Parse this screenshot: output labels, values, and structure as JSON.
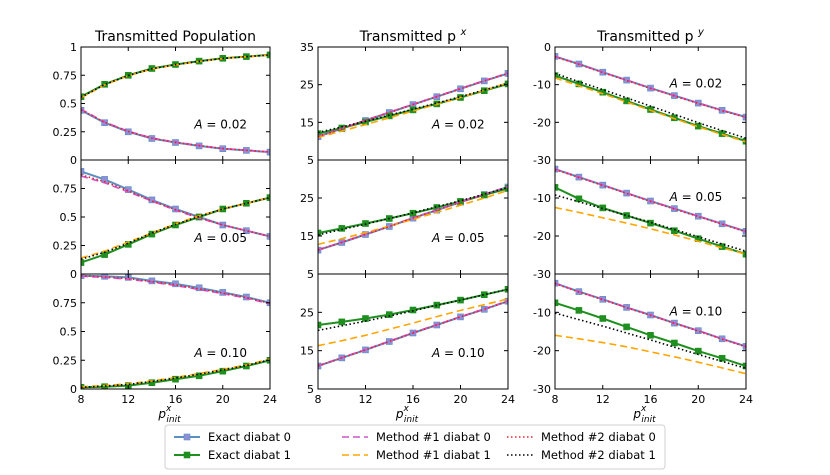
{
  "colors": {
    "exact0": "#5a8fc0",
    "exact1": "#1f8f1f",
    "m1d0": "#cc55cc",
    "m1d1": "#ffa500",
    "m2d0": "#e8202a",
    "m2d1": "#000000",
    "marker0": "#8f8fd8"
  },
  "chart_data": {
    "type": "line",
    "x": [
      8,
      10,
      12,
      14,
      16,
      18,
      20,
      22,
      24
    ],
    "xlabel": "p_init^x",
    "xticks": [
      "8",
      "12",
      "16",
      "20",
      "24"
    ],
    "columns": [
      {
        "title": "Transmitted Population",
        "title_sup": "",
        "ylim": [
          0,
          1
        ],
        "yticks": [
          0,
          0.25,
          0.5,
          0.75,
          1
        ],
        "ytick_labels": [
          "0",
          "0.25",
          "0.5",
          "0.75",
          "1"
        ]
      },
      {
        "title": "Transmitted p",
        "title_sup": "x",
        "ylim": [
          5,
          35
        ],
        "yticks": [
          5,
          15,
          25,
          35
        ],
        "ytick_labels": [
          "5",
          "15",
          "25",
          "35"
        ]
      },
      {
        "title": "Transmitted p",
        "title_sup": "y",
        "ylim": [
          -30,
          0
        ],
        "yticks": [
          -30,
          -20,
          -10,
          0
        ],
        "ytick_labels": [
          "-30",
          "-20",
          "-10",
          "0"
        ]
      }
    ],
    "rows": [
      {
        "A_label": "A = 0.02",
        "panels": [
          {
            "exact0": [
              0.44,
              0.33,
              0.25,
              0.19,
              0.155,
              0.125,
              0.1,
              0.085,
              0.07
            ],
            "exact1": [
              0.56,
              0.67,
              0.75,
              0.81,
              0.845,
              0.875,
              0.9,
              0.915,
              0.93
            ],
            "m1d0": [
              0.45,
              0.335,
              0.255,
              0.195,
              0.158,
              0.128,
              0.102,
              0.087,
              0.072
            ],
            "m1d1": [
              0.55,
              0.665,
              0.745,
              0.805,
              0.842,
              0.872,
              0.898,
              0.913,
              0.928
            ],
            "m2d0": [
              0.445,
              0.333,
              0.252,
              0.193,
              0.156,
              0.127,
              0.101,
              0.086,
              0.071
            ],
            "m2d1": [
              0.555,
              0.667,
              0.748,
              0.807,
              0.844,
              0.873,
              0.899,
              0.914,
              0.929
            ]
          },
          {
            "exact0": [
              11.2,
              13.3,
              15.5,
              17.6,
              19.7,
              21.8,
              23.9,
              26.0,
              28.0
            ],
            "exact1": [
              12.0,
              13.5,
              15.1,
              16.7,
              18.3,
              19.9,
              21.6,
              23.4,
              25.2
            ],
            "m1d0": [
              11.3,
              13.4,
              15.6,
              17.7,
              19.8,
              21.9,
              24.0,
              26.1,
              28.1
            ],
            "m1d1": [
              11.0,
              12.7,
              14.4,
              16.2,
              18.0,
              19.8,
              21.6,
              23.5,
              25.5
            ],
            "m2d0": [
              11.2,
              13.3,
              15.5,
              17.6,
              19.7,
              21.8,
              23.9,
              26.0,
              28.0
            ],
            "m2d1": [
              12.3,
              13.8,
              15.3,
              16.9,
              18.5,
              20.1,
              21.8,
              23.6,
              25.4
            ]
          },
          {
            "exact0": [
              -2.5,
              -4.5,
              -6.7,
              -8.8,
              -10.9,
              -12.9,
              -14.9,
              -16.8,
              -18.6
            ],
            "exact1": [
              -7.6,
              -9.8,
              -12.0,
              -14.3,
              -16.6,
              -18.8,
              -21.0,
              -23.0,
              -25.0
            ],
            "m1d0": [
              -2.5,
              -4.5,
              -6.7,
              -8.8,
              -10.9,
              -12.9,
              -14.9,
              -16.8,
              -18.6
            ],
            "m1d1": [
              -8.2,
              -10.3,
              -12.4,
              -14.6,
              -16.8,
              -19.0,
              -21.2,
              -23.2,
              -25.2
            ],
            "m2d0": [
              -2.6,
              -4.6,
              -6.8,
              -8.9,
              -11.0,
              -13.0,
              -15.0,
              -16.9,
              -18.7
            ],
            "m2d1": [
              -7.0,
              -9.2,
              -11.3,
              -13.5,
              -15.7,
              -17.9,
              -20.1,
              -22.2,
              -24.2
            ]
          }
        ]
      },
      {
        "A_label": "A = 0.05",
        "panels": [
          {
            "exact0": [
              0.9,
              0.83,
              0.74,
              0.65,
              0.57,
              0.5,
              0.43,
              0.38,
              0.33
            ],
            "exact1": [
              0.1,
              0.17,
              0.26,
              0.35,
              0.43,
              0.5,
              0.57,
              0.62,
              0.67
            ],
            "m1d0": [
              0.86,
              0.8,
              0.72,
              0.64,
              0.56,
              0.49,
              0.43,
              0.38,
              0.33
            ],
            "m1d1": [
              0.14,
              0.2,
              0.28,
              0.36,
              0.44,
              0.51,
              0.57,
              0.62,
              0.67
            ],
            "m2d0": [
              0.87,
              0.81,
              0.73,
              0.64,
              0.565,
              0.495,
              0.43,
              0.38,
              0.33
            ],
            "m2d1": [
              0.13,
              0.19,
              0.27,
              0.36,
              0.435,
              0.505,
              0.57,
              0.62,
              0.67
            ]
          },
          {
            "exact0": [
              11.3,
              13.3,
              15.4,
              17.5,
              19.7,
              21.8,
              23.9,
              25.9,
              27.9
            ],
            "exact1": [
              15.8,
              17.0,
              18.3,
              19.6,
              21.0,
              22.5,
              24.1,
              25.8,
              27.5
            ],
            "m1d0": [
              11.4,
              13.4,
              15.5,
              17.6,
              19.8,
              21.9,
              24.0,
              26.0,
              28.0
            ],
            "m1d1": [
              12.8,
              14.3,
              15.9,
              17.6,
              19.4,
              21.2,
              23.1,
              25.0,
              27.0
            ],
            "m2d0": [
              11.3,
              13.3,
              15.4,
              17.5,
              19.7,
              21.8,
              23.9,
              25.9,
              27.9
            ],
            "m2d1": [
              15.3,
              16.7,
              18.1,
              19.6,
              21.1,
              22.7,
              24.3,
              26.0,
              27.8
            ]
          },
          {
            "exact0": [
              -2.4,
              -4.5,
              -6.6,
              -8.7,
              -10.8,
              -12.8,
              -14.8,
              -16.8,
              -18.8
            ],
            "exact1": [
              -7.2,
              -10.2,
              -12.6,
              -14.6,
              -16.6,
              -18.6,
              -20.7,
              -22.8,
              -24.8
            ],
            "m1d0": [
              -2.4,
              -4.5,
              -6.6,
              -8.7,
              -10.8,
              -12.8,
              -14.8,
              -16.8,
              -18.8
            ],
            "m1d1": [
              -12.5,
              -13.8,
              -15.2,
              -16.6,
              -18.1,
              -19.7,
              -21.4,
              -23.1,
              -24.8
            ],
            "m2d0": [
              -2.5,
              -4.6,
              -6.7,
              -8.8,
              -10.9,
              -12.9,
              -14.9,
              -16.9,
              -18.9
            ],
            "m2d1": [
              -9.2,
              -11.0,
              -12.8,
              -14.6,
              -16.4,
              -18.3,
              -20.2,
              -22.1,
              -24.0
            ]
          }
        ]
      },
      {
        "A_label": "A = 0.10",
        "panels": [
          {
            "exact0": [
              0.985,
              0.98,
              0.97,
              0.94,
              0.915,
              0.88,
              0.84,
              0.8,
              0.75
            ],
            "exact1": [
              0.015,
              0.02,
              0.03,
              0.055,
              0.085,
              0.115,
              0.155,
              0.2,
              0.25
            ],
            "m1d0": [
              0.98,
              0.97,
              0.955,
              0.93,
              0.9,
              0.865,
              0.83,
              0.79,
              0.74
            ],
            "m1d1": [
              0.02,
              0.03,
              0.045,
              0.07,
              0.1,
              0.135,
              0.17,
              0.21,
              0.26
            ],
            "m2d0": [
              0.985,
              0.975,
              0.96,
              0.935,
              0.905,
              0.87,
              0.835,
              0.795,
              0.745
            ],
            "m2d1": [
              0.015,
              0.025,
              0.04,
              0.065,
              0.095,
              0.13,
              0.165,
              0.205,
              0.255
            ]
          },
          {
            "exact0": [
              11.0,
              13.1,
              15.2,
              17.4,
              19.6,
              21.7,
              23.8,
              25.8,
              27.9
            ],
            "exact1": [
              21.7,
              22.5,
              23.4,
              24.4,
              25.6,
              26.9,
              28.2,
              29.6,
              31.0
            ],
            "m1d0": [
              11.1,
              13.2,
              15.3,
              17.5,
              19.7,
              21.8,
              23.9,
              25.9,
              28.0
            ],
            "m1d1": [
              16.3,
              17.6,
              19.0,
              20.6,
              22.2,
              23.9,
              25.5,
              27.0,
              28.5
            ],
            "m2d0": [
              11.0,
              13.1,
              15.2,
              17.4,
              19.6,
              21.7,
              23.8,
              25.8,
              27.9
            ],
            "m2d1": [
              20.3,
              21.5,
              22.7,
              24.0,
              25.4,
              26.8,
              28.2,
              29.6,
              31.0
            ]
          },
          {
            "exact0": [
              -2.4,
              -4.6,
              -6.6,
              -8.7,
              -10.7,
              -12.8,
              -14.8,
              -16.9,
              -18.9
            ],
            "exact1": [
              -7.5,
              -9.5,
              -11.6,
              -13.8,
              -16.0,
              -18.0,
              -20.1,
              -22.0,
              -24.0
            ],
            "m1d0": [
              -2.4,
              -4.6,
              -6.6,
              -8.7,
              -10.7,
              -12.8,
              -14.8,
              -16.9,
              -18.9
            ],
            "m1d1": [
              -16.0,
              -16.9,
              -17.9,
              -19.0,
              -20.3,
              -21.6,
              -23.0,
              -24.5,
              -26.0
            ],
            "m2d0": [
              -2.5,
              -4.7,
              -6.7,
              -8.8,
              -10.8,
              -12.9,
              -14.9,
              -17.0,
              -19.0
            ],
            "m2d1": [
              -10.2,
              -11.9,
              -13.6,
              -15.4,
              -17.2,
              -19.1,
              -21.0,
              -22.8,
              -24.6
            ]
          }
        ]
      }
    ],
    "legend": {
      "placement": "bottom",
      "entries": [
        {
          "key": "exact0",
          "label": "Exact diabat 0"
        },
        {
          "key": "m1d0",
          "label": "Method #1 diabat 0"
        },
        {
          "key": "m2d0",
          "label": "Method #2 diabat 0"
        },
        {
          "key": "exact1",
          "label": "Exact diabat 1"
        },
        {
          "key": "m1d1",
          "label": "Method #1 diabat 1"
        },
        {
          "key": "m2d1",
          "label": "Method #2 diabat 1"
        }
      ]
    }
  }
}
